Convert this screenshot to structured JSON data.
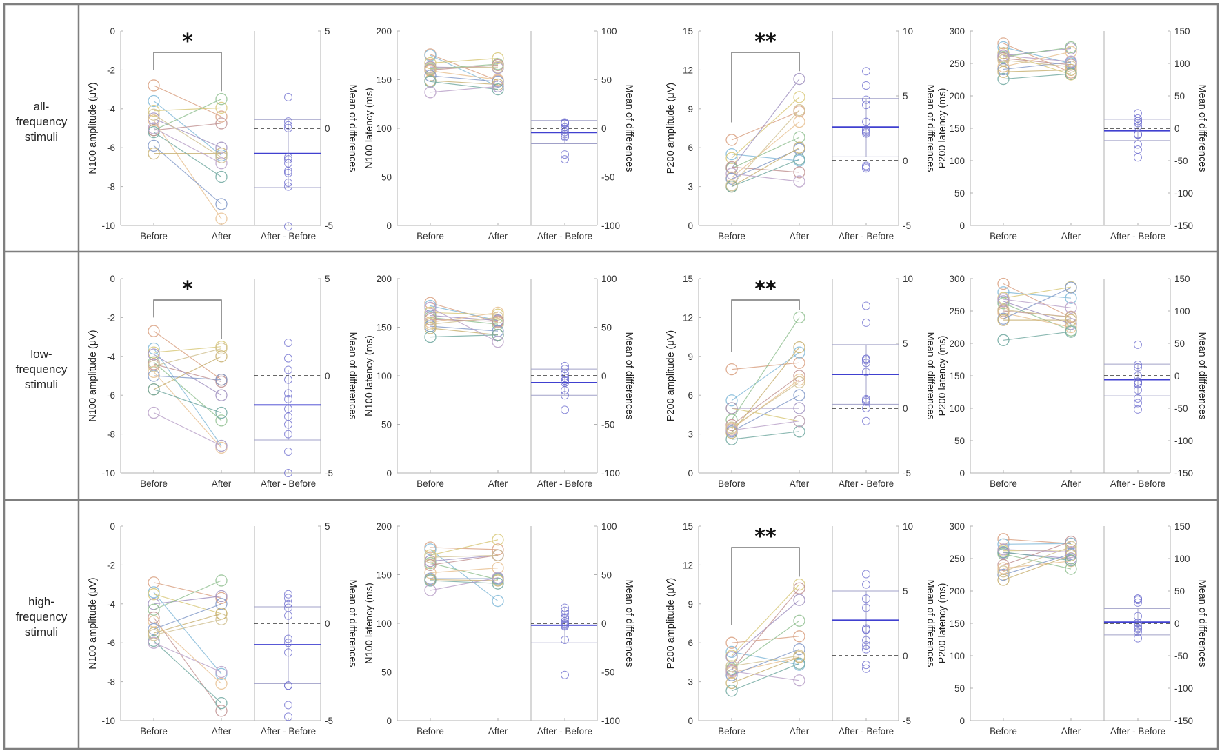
{
  "row_labels": [
    [
      "all-",
      "frequency",
      "stimuli"
    ],
    [
      "low-",
      "frequency",
      "stimuli"
    ],
    [
      "high-",
      "frequency",
      "stimuli"
    ]
  ],
  "x_labels": [
    "Before",
    "After",
    "After - Before"
  ],
  "diff_axis_label": "Mean of differences",
  "colors": {
    "frame": "#7f7f7f",
    "axis": "#b0b0b0",
    "mean_line": "#4040d0",
    "ci_line": "#a0a0c8",
    "diff_marker": "#7070d0",
    "subjects": [
      "#d9a080",
      "#80b8d8",
      "#d8c878",
      "#a090c0",
      "#90c090",
      "#c09090",
      "#e8c090",
      "#8098c8",
      "#c8b070",
      "#70a8a0",
      "#b8a0c8",
      "#d0c090"
    ]
  },
  "chart_data": [
    {
      "type": "paired-scatter",
      "row": 0,
      "ylabel": "N100 amplitude (μV)",
      "ylim": [
        -10,
        0
      ],
      "yticks": [
        -10,
        -8,
        -6,
        -4,
        -2,
        0
      ],
      "diff_ylim": [
        -5,
        5
      ],
      "diff_yticks": [
        -5,
        0,
        5
      ],
      "significance": "*",
      "pairs": [
        [
          -2.8,
          -4.4
        ],
        [
          -3.6,
          -6.4
        ],
        [
          -4.1,
          -3.95
        ],
        [
          -4.5,
          -6.0
        ],
        [
          -5.1,
          -3.5
        ],
        [
          -5.1,
          -4.75
        ],
        [
          -4.6,
          -9.65
        ],
        [
          -5.9,
          -8.9
        ],
        [
          -6.3,
          -6.3
        ],
        [
          -5.2,
          -7.5
        ],
        [
          -5.0,
          -6.8
        ],
        [
          -4.3,
          -6.5
        ]
      ],
      "mean_diff": -1.3,
      "ci": [
        -3.05,
        0.45
      ]
    },
    {
      "type": "paired-scatter",
      "row": 0,
      "ylabel": "N100 latency (ms)",
      "ylim": [
        0,
        200
      ],
      "yticks": [
        0,
        50,
        100,
        150,
        200
      ],
      "diff_ylim": [
        -100,
        100
      ],
      "diff_yticks": [
        -100,
        -50,
        0,
        50,
        100
      ],
      "significance": "",
      "pairs": [
        [
          176,
          149
        ],
        [
          175,
          143
        ],
        [
          167,
          172
        ],
        [
          163,
          162
        ],
        [
          161,
          166
        ],
        [
          160,
          165
        ],
        [
          159,
          150
        ],
        [
          154,
          148
        ],
        [
          149,
          145
        ],
        [
          148,
          140
        ],
        [
          137,
          143
        ],
        [
          162,
          163
        ]
      ],
      "mean_diff": -4.5,
      "ci": [
        -16,
        8
      ]
    },
    {
      "type": "paired-scatter",
      "row": 0,
      "ylabel": "P200 amplitude (μV)",
      "ylim": [
        0,
        15
      ],
      "yticks": [
        0,
        3,
        6,
        9,
        12,
        15
      ],
      "diff_ylim": [
        -5,
        10
      ],
      "diff_yticks": [
        -5,
        0,
        5,
        10
      ],
      "significance": "**",
      "pairs": [
        [
          6.6,
          8.8
        ],
        [
          5.5,
          5.0
        ],
        [
          5.2,
          9.9
        ],
        [
          4.4,
          11.3
        ],
        [
          4.4,
          6.8
        ],
        [
          4.5,
          4.1
        ],
        [
          3.7,
          8.0
        ],
        [
          3.6,
          5.9
        ],
        [
          3.0,
          6.0
        ],
        [
          3.0,
          5.1
        ],
        [
          4.0,
          3.4
        ],
        [
          3.1,
          8.9
        ]
      ],
      "mean_diff": 2.6,
      "ci": [
        0.3,
        4.8
      ]
    },
    {
      "type": "paired-scatter",
      "row": 0,
      "ylabel": "P200 latency (ms)",
      "ylim": [
        0,
        300
      ],
      "yticks": [
        0,
        50,
        100,
        150,
        200,
        250,
        300
      ],
      "diff_ylim": [
        -150,
        150
      ],
      "diff_yticks": [
        -150,
        -100,
        -50,
        0,
        50,
        100,
        150
      ],
      "significance": "",
      "pairs": [
        [
          281,
          236
        ],
        [
          275,
          250
        ],
        [
          266,
          233
        ],
        [
          262,
          273
        ],
        [
          260,
          275
        ],
        [
          258,
          248
        ],
        [
          245,
          268
        ],
        [
          241,
          252
        ],
        [
          237,
          240
        ],
        [
          226,
          234
        ],
        [
          262,
          253
        ],
        [
          255,
          245
        ]
      ],
      "mean_diff": -4,
      "ci": [
        -19,
        14
      ]
    },
    {
      "type": "paired-scatter",
      "row": 1,
      "ylabel": "N100 amplitude (μV)",
      "ylim": [
        -10,
        0
      ],
      "yticks": [
        -10,
        -8,
        -6,
        -4,
        -2,
        0
      ],
      "diff_ylim": [
        -5,
        5
      ],
      "diff_yticks": [
        -5,
        0,
        5
      ],
      "significance": "*",
      "pairs": [
        [
          -2.7,
          -5.2
        ],
        [
          -3.6,
          -8.6
        ],
        [
          -3.8,
          -3.5
        ],
        [
          -3.9,
          -6.0
        ],
        [
          -4.3,
          -7.3
        ],
        [
          -4.4,
          -5.3
        ],
        [
          -4.8,
          -8.7
        ],
        [
          -5.0,
          -5.2
        ],
        [
          -5.7,
          -4.0
        ],
        [
          -5.7,
          -6.9
        ],
        [
          -6.9,
          -8.6
        ],
        [
          -4.5,
          -3.6
        ]
      ],
      "mean_diff": -1.5,
      "ci": [
        -3.3,
        0.3
      ]
    },
    {
      "type": "paired-scatter",
      "row": 1,
      "ylabel": "N100 latency (ms)",
      "ylim": [
        0,
        200
      ],
      "yticks": [
        0,
        50,
        100,
        150,
        200
      ],
      "diff_ylim": [
        -100,
        100
      ],
      "diff_yticks": [
        -100,
        -50,
        0,
        50,
        100
      ],
      "significance": "",
      "pairs": [
        [
          175,
          155
        ],
        [
          172,
          157
        ],
        [
          165,
          163
        ],
        [
          162,
          157
        ],
        [
          160,
          153
        ],
        [
          158,
          156
        ],
        [
          155,
          165
        ],
        [
          151,
          146
        ],
        [
          149,
          142
        ],
        [
          140,
          142
        ],
        [
          170,
          135
        ],
        [
          153,
          160
        ]
      ],
      "mean_diff": -7,
      "ci": [
        -20,
        7
      ]
    },
    {
      "type": "paired-scatter",
      "row": 1,
      "ylabel": "P200 amplitude (μV)",
      "ylim": [
        0,
        15
      ],
      "yticks": [
        0,
        3,
        6,
        9,
        12,
        15
      ],
      "diff_ylim": [
        -5,
        10
      ],
      "diff_yticks": [
        -5,
        0,
        5,
        10
      ],
      "significance": "**",
      "pairs": [
        [
          8.0,
          8.5
        ],
        [
          5.6,
          9.3
        ],
        [
          5.0,
          4.0
        ],
        [
          5.0,
          5.0
        ],
        [
          4.1,
          12.0
        ],
        [
          3.7,
          7.5
        ],
        [
          3.4,
          7.2
        ],
        [
          3.2,
          6.0
        ],
        [
          3.1,
          9.7
        ],
        [
          2.6,
          3.2
        ],
        [
          3.3,
          4.0
        ],
        [
          3.5,
          7.0
        ]
      ],
      "mean_diff": 2.6,
      "ci": [
        0.3,
        4.9
      ]
    },
    {
      "type": "paired-scatter",
      "row": 1,
      "ylabel": "P200 latency (ms)",
      "ylim": [
        0,
        300
      ],
      "yticks": [
        0,
        50,
        100,
        150,
        200,
        250,
        300
      ],
      "diff_ylim": [
        -150,
        150
      ],
      "diff_yticks": [
        -150,
        -100,
        -50,
        0,
        50,
        100,
        150
      ],
      "significance": "",
      "pairs": [
        [
          292,
          240
        ],
        [
          279,
          270
        ],
        [
          270,
          287
        ],
        [
          265,
          230
        ],
        [
          262,
          220
        ],
        [
          250,
          241
        ],
        [
          247,
          225
        ],
        [
          238,
          286
        ],
        [
          236,
          236
        ],
        [
          205,
          218
        ],
        [
          268,
          255
        ],
        [
          252,
          240
        ]
      ],
      "mean_diff": -6,
      "ci": [
        -31,
        18
      ]
    },
    {
      "type": "paired-scatter",
      "row": 2,
      "ylabel": "N100 amplitude (μV)",
      "ylim": [
        -10,
        0
      ],
      "yticks": [
        -10,
        -8,
        -6,
        -4,
        -2,
        0
      ],
      "diff_ylim": [
        -5,
        5
      ],
      "diff_yticks": [
        -5,
        0,
        5
      ],
      "significance": "",
      "pairs": [
        [
          -2.9,
          -3.7
        ],
        [
          -3.4,
          -7.6
        ],
        [
          -3.5,
          -4.5
        ],
        [
          -4.0,
          -3.6
        ],
        [
          -4.3,
          -2.8
        ],
        [
          -4.7,
          -9.5
        ],
        [
          -4.9,
          -8.1
        ],
        [
          -5.3,
          -4.0
        ],
        [
          -5.5,
          -4.5
        ],
        [
          -5.9,
          -9.1
        ],
        [
          -6.0,
          -7.5
        ],
        [
          -5.6,
          -4.8
        ]
      ],
      "mean_diff": -1.1,
      "ci": [
        -3.1,
        0.85
      ]
    },
    {
      "type": "paired-scatter",
      "row": 2,
      "ylabel": "N100 latency (ms)",
      "ylim": [
        0,
        200
      ],
      "yticks": [
        0,
        50,
        100,
        150,
        200
      ],
      "diff_ylim": [
        -100,
        100
      ],
      "diff_yticks": [
        -100,
        -50,
        0,
        50,
        100
      ],
      "significance": "",
      "pairs": [
        [
          178,
          176
        ],
        [
          176,
          123
        ],
        [
          170,
          186
        ],
        [
          164,
          170
        ],
        [
          162,
          145
        ],
        [
          160,
          170
        ],
        [
          152,
          157
        ],
        [
          146,
          146
        ],
        [
          145,
          144
        ],
        [
          144,
          141
        ],
        [
          134,
          147
        ],
        [
          168,
          170
        ]
      ],
      "mean_diff": -2,
      "ci": [
        -20,
        16
      ]
    },
    {
      "type": "paired-scatter",
      "row": 2,
      "ylabel": "P200 amplitude (μV)",
      "ylim": [
        0,
        15
      ],
      "yticks": [
        0,
        3,
        6,
        9,
        12,
        15
      ],
      "diff_ylim": [
        -5,
        10
      ],
      "diff_yticks": [
        -5,
        0,
        5,
        10
      ],
      "significance": "**",
      "pairs": [
        [
          6.0,
          6.5
        ],
        [
          5.3,
          4.3
        ],
        [
          5.0,
          10.5
        ],
        [
          4.9,
          9.3
        ],
        [
          4.0,
          7.7
        ],
        [
          3.9,
          10.2
        ],
        [
          3.7,
          4.9
        ],
        [
          3.5,
          5.5
        ],
        [
          2.9,
          4.9
        ],
        [
          2.3,
          4.4
        ],
        [
          3.8,
          3.1
        ],
        [
          4.2,
          5.0
        ]
      ],
      "mean_diff": 2.75,
      "ci": [
        0.45,
        5.0
      ]
    },
    {
      "type": "paired-scatter",
      "row": 2,
      "ylabel": "P200 latency (ms)",
      "ylim": [
        0,
        300
      ],
      "yticks": [
        0,
        50,
        100,
        150,
        200,
        250,
        300
      ],
      "diff_ylim": [
        -150,
        150
      ],
      "diff_yticks": [
        -150,
        -100,
        -50,
        0,
        50,
        100,
        150
      ],
      "significance": "",
      "pairs": [
        [
          280,
          273
        ],
        [
          272,
          273
        ],
        [
          262,
          263
        ],
        [
          259,
          250
        ],
        [
          257,
          234
        ],
        [
          240,
          276
        ],
        [
          235,
          246
        ],
        [
          225,
          257
        ],
        [
          217,
          255
        ],
        [
          260,
          247
        ],
        [
          264,
          260
        ],
        [
          230,
          268
        ]
      ],
      "mean_diff": 2,
      "ci": [
        -18,
        23
      ]
    }
  ]
}
